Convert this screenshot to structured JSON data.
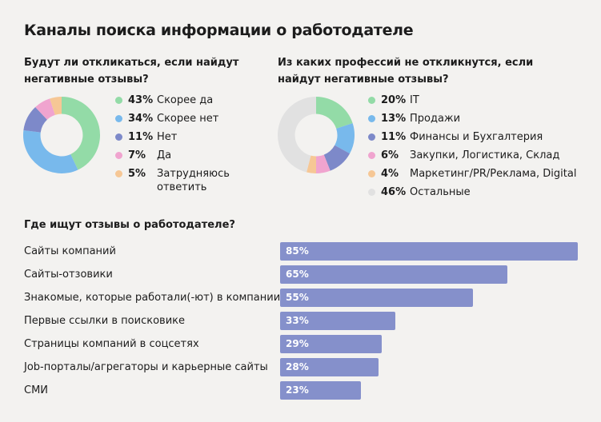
{
  "title": "Каналы поиска информации о работодателе",
  "chart_data": [
    {
      "type": "pie",
      "title": "Будут ли откликаться, если найдут негативные отзывы?",
      "slices": [
        {
          "pct_label": "43%",
          "label": "Скорее да",
          "value": 43,
          "color": "#93dba7"
        },
        {
          "pct_label": "34%",
          "label": "Скорее нет",
          "value": 34,
          "color": "#78b9ec"
        },
        {
          "pct_label": "11%",
          "label": "Нет",
          "value": 11,
          "color": "#7d89c9"
        },
        {
          "pct_label": "7%",
          "label": "Да",
          "value": 7,
          "color": "#f0a4cf"
        },
        {
          "pct_label": "5%",
          "label": "Затрудняюсь ответить",
          "value": 5,
          "color": "#f6c795"
        }
      ]
    },
    {
      "type": "pie",
      "title": "Из каких профессий не откликнутся, если найдут негативные отзывы?",
      "slices": [
        {
          "pct_label": "20%",
          "label": "IT",
          "value": 20,
          "color": "#93dba7"
        },
        {
          "pct_label": "13%",
          "label": "Продажи",
          "value": 13,
          "color": "#78b9ec"
        },
        {
          "pct_label": "11%",
          "label": "Финансы и Бухгалтерия",
          "value": 11,
          "color": "#7d89c9"
        },
        {
          "pct_label": "6%",
          "label": "Закупки, Логистика, Склад",
          "value": 6,
          "color": "#f0a4cf"
        },
        {
          "pct_label": "4%",
          "label": "Маркетинг/PR/Реклама, Digital",
          "value": 4,
          "color": "#f6c795"
        },
        {
          "pct_label": "46%",
          "label": "Остальные",
          "value": 46,
          "color": "#e1e1e1"
        }
      ]
    },
    {
      "type": "bar",
      "orientation": "horizontal",
      "title": "Где ищут отзывы о работодателе?",
      "xlim": [
        0,
        85
      ],
      "color": "#8590cb",
      "categories": [
        "Сайты компаний",
        "Сайты-отзовики",
        "Знакомые, которые работали(-ют) в компании",
        "Первые ссылки в поисковике",
        "Страницы компаний в соцсетях",
        "Job-порталы/агрегаторы и карьерные сайты",
        "СМИ"
      ],
      "values": [
        85,
        65,
        55,
        33,
        29,
        28,
        23
      ],
      "value_labels": [
        "85%",
        "65%",
        "55%",
        "33%",
        "29%",
        "28%",
        "23%"
      ]
    }
  ]
}
